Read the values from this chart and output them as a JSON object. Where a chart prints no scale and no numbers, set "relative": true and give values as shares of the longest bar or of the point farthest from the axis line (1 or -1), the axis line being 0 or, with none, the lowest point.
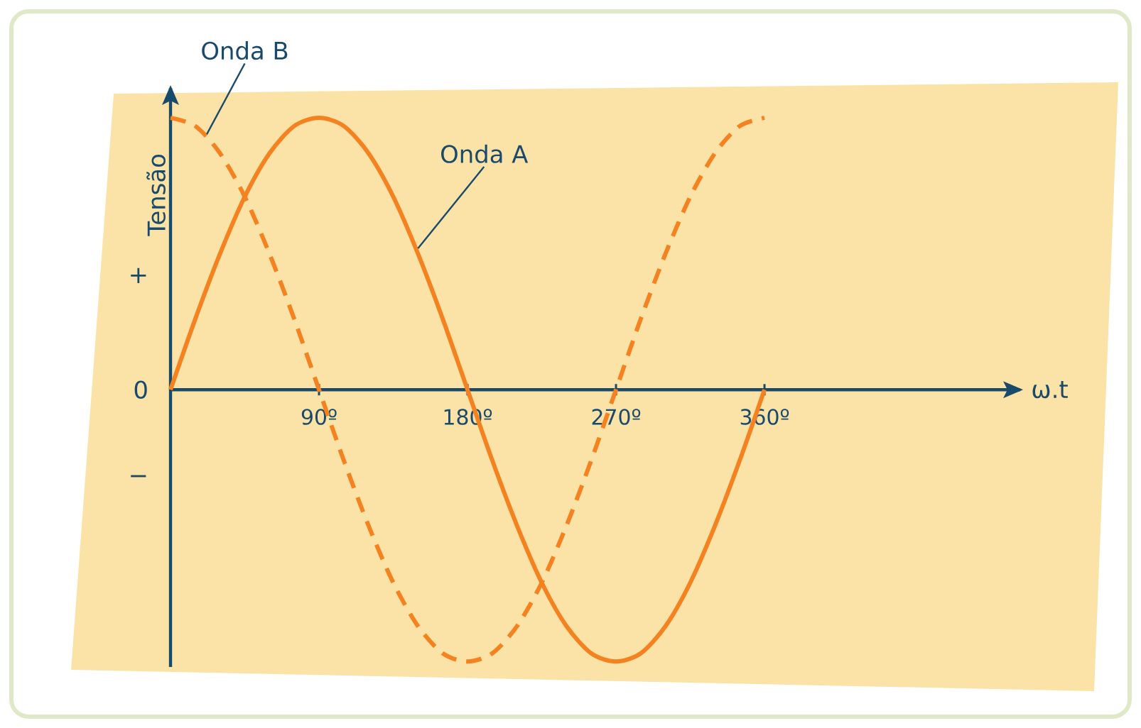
{
  "chart_data": {
    "type": "line",
    "relative": true,
    "xlabel": "ω.t",
    "ylabel": "Tensão",
    "x": [
      0,
      15,
      30,
      45,
      60,
      75,
      90,
      105,
      120,
      135,
      150,
      165,
      180,
      195,
      210,
      225,
      240,
      255,
      270,
      285,
      300,
      315,
      330,
      345,
      360
    ],
    "xlim": [
      0,
      515
    ],
    "xticks": [
      {
        "value": 90,
        "label": "90º"
      },
      {
        "value": 180,
        "label": "180º"
      },
      {
        "value": 270,
        "label": "270º"
      },
      {
        "value": 360,
        "label": "360º"
      }
    ],
    "series": [
      {
        "name": "Onda A",
        "color": "#f58220",
        "line_style": "solid",
        "values": [
          0,
          0.26,
          0.5,
          0.71,
          0.87,
          0.97,
          1,
          0.97,
          0.87,
          0.71,
          0.5,
          0.26,
          0,
          -0.26,
          -0.5,
          -0.71,
          -0.87,
          -0.97,
          -1,
          -0.97,
          -0.87,
          -0.71,
          -0.5,
          -0.26,
          0
        ]
      },
      {
        "name": "Onda B",
        "color": "#f58220",
        "line_style": "dashed",
        "values": [
          1,
          0.97,
          0.87,
          0.71,
          0.5,
          0.26,
          0,
          -0.26,
          -0.5,
          -0.71,
          -0.87,
          -0.97,
          -1,
          -0.97,
          -0.87,
          -0.71,
          -0.5,
          -0.26,
          0,
          0.26,
          0.5,
          0.71,
          0.87,
          0.97,
          1
        ]
      }
    ],
    "annotations": [
      "+",
      "0",
      "−"
    ],
    "legend": false,
    "grid": false,
    "marker": "none"
  }
}
